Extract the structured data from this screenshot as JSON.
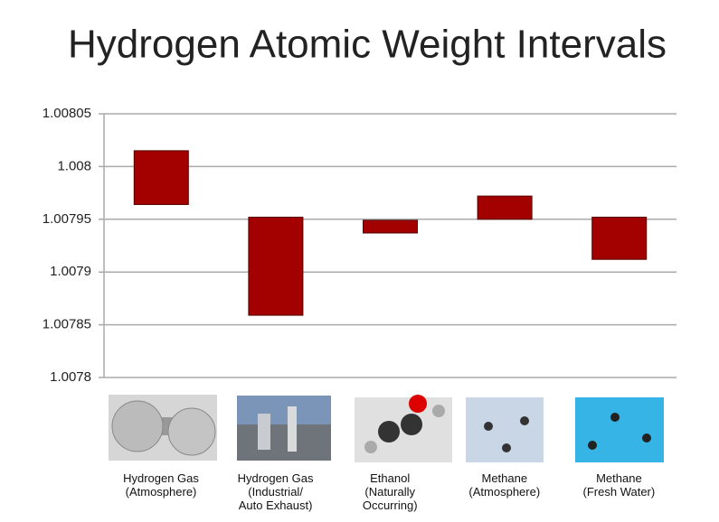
{
  "chart_data": {
    "type": "floating_bar",
    "title": "Hydrogen Atomic Weight Intervals",
    "categories": [
      "Hydrogen Gas\n(Atmosphere)",
      "Hydrogen Gas\n(Industrial/\nAuto Exhaust)",
      "Ethanol\n(Naturally\nOccurring)",
      "Methane\n(Atmosphere)",
      "Methane\n(Fresh Water)"
    ],
    "highs": [
      1.008015,
      1.007952,
      1.007949,
      1.007972,
      1.007952
    ],
    "lows": [
      1.007964,
      1.007859,
      1.007937,
      1.00795,
      1.007912
    ],
    "color": "#a30000",
    "ylim": [
      1.0078,
      1.00805
    ],
    "yticks": [
      1.0078,
      1.00785,
      1.0079,
      1.00795,
      1.008,
      1.00805
    ],
    "grid": true
  }
}
